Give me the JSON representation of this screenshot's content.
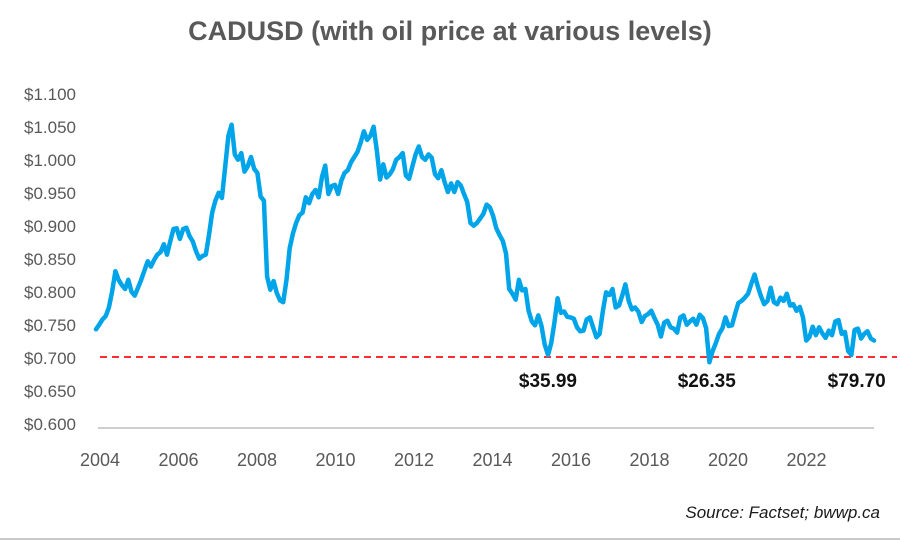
{
  "chart": {
    "title": "CADUSD (with oil price at various levels)",
    "title_color": "#595959",
    "axis_label_color": "#595959",
    "source_note": "Source: Factset; bwwp.ca"
  },
  "chart_data": {
    "type": "line",
    "title": "CADUSD (with oil price at various levels)",
    "x_frequency": "monthly",
    "x_start": "2004-05",
    "x_end": "2024-06",
    "x_ticks": [
      "2004",
      "2006",
      "2008",
      "2010",
      "2012",
      "2014",
      "2016",
      "2018",
      "2020",
      "2022"
    ],
    "y_ticks": [
      "$1.100",
      "$1.050",
      "$1.000",
      "$0.950",
      "$0.900",
      "$0.850",
      "$0.800",
      "$0.750",
      "$0.700",
      "$0.650",
      "$0.600"
    ],
    "ylim": [
      0.6,
      1.1
    ],
    "grid": false,
    "legend": false,
    "series": [
      {
        "name": "CADUSD",
        "color": "#00A4E8",
        "values": [
          0.745,
          0.752,
          0.76,
          0.765,
          0.778,
          0.802,
          0.833,
          0.82,
          0.812,
          0.806,
          0.82,
          0.802,
          0.796,
          0.808,
          0.82,
          0.834,
          0.848,
          0.84,
          0.85,
          0.858,
          0.862,
          0.874,
          0.858,
          0.878,
          0.897,
          0.898,
          0.882,
          0.897,
          0.899,
          0.886,
          0.878,
          0.863,
          0.852,
          0.856,
          0.858,
          0.888,
          0.922,
          0.94,
          0.952,
          0.944,
          0.99,
          1.038,
          1.055,
          1.01,
          1.002,
          1.012,
          0.984,
          0.992,
          1.006,
          0.988,
          0.982,
          0.946,
          0.94,
          0.825,
          0.805,
          0.818,
          0.8,
          0.789,
          0.786,
          0.82,
          0.868,
          0.89,
          0.906,
          0.918,
          0.922,
          0.945,
          0.936,
          0.95,
          0.956,
          0.945,
          0.976,
          0.993,
          0.95,
          0.962,
          0.964,
          0.95,
          0.97,
          0.982,
          0.986,
          0.998,
          1.006,
          1.014,
          1.028,
          1.045,
          1.032,
          1.038,
          1.052,
          1.015,
          0.972,
          0.995,
          0.975,
          0.98,
          0.988,
          1.002,
          1.006,
          1.012,
          0.978,
          0.973,
          0.992,
          1.01,
          1.022,
          1.006,
          1.002,
          1.01,
          1.005,
          0.98,
          0.974,
          0.986,
          0.968,
          0.953,
          0.966,
          0.953,
          0.968,
          0.963,
          0.95,
          0.938,
          0.906,
          0.902,
          0.906,
          0.913,
          0.92,
          0.934,
          0.93,
          0.917,
          0.898,
          0.888,
          0.879,
          0.86,
          0.806,
          0.799,
          0.79,
          0.82,
          0.804,
          0.806,
          0.773,
          0.757,
          0.751,
          0.766,
          0.75,
          0.722,
          0.706,
          0.724,
          0.755,
          0.792,
          0.77,
          0.772,
          0.764,
          0.763,
          0.761,
          0.748,
          0.742,
          0.743,
          0.76,
          0.763,
          0.748,
          0.733,
          0.738,
          0.772,
          0.801,
          0.797,
          0.806,
          0.778,
          0.781,
          0.796,
          0.813,
          0.788,
          0.775,
          0.778,
          0.772,
          0.756,
          0.765,
          0.768,
          0.773,
          0.762,
          0.752,
          0.734,
          0.755,
          0.758,
          0.748,
          0.746,
          0.74,
          0.763,
          0.766,
          0.752,
          0.757,
          0.761,
          0.752,
          0.767,
          0.762,
          0.747,
          0.695,
          0.712,
          0.724,
          0.738,
          0.746,
          0.763,
          0.75,
          0.751,
          0.769,
          0.785,
          0.788,
          0.793,
          0.799,
          0.814,
          0.828,
          0.81,
          0.795,
          0.783,
          0.788,
          0.808,
          0.786,
          0.783,
          0.793,
          0.788,
          0.799,
          0.781,
          0.783,
          0.773,
          0.779,
          0.763,
          0.728,
          0.733,
          0.749,
          0.736,
          0.748,
          0.739,
          0.732,
          0.743,
          0.736,
          0.757,
          0.759,
          0.738,
          0.741,
          0.712,
          0.706,
          0.744,
          0.746,
          0.731,
          0.738,
          0.742,
          0.731,
          0.728
        ]
      }
    ],
    "reference_line": {
      "value": 0.703,
      "color": "#FF2D2D",
      "style": "dashed"
    },
    "annotations": [
      {
        "label": "$35.99",
        "anchor_year": 2016.0
      },
      {
        "label": "$26.35",
        "anchor_year": 2020.1
      },
      {
        "label": "$79.70",
        "anchor_year": 2023.97
      }
    ]
  }
}
